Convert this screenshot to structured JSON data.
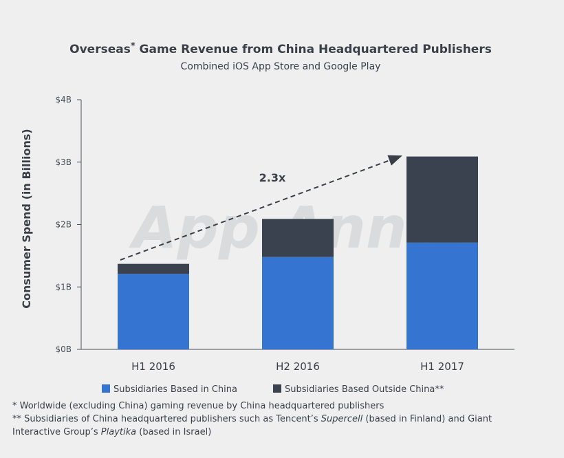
{
  "chart_data": {
    "type": "bar",
    "stacked": true,
    "title": "Overseas",
    "title_star": "*",
    "title_rest": " Game Revenue from China Headquartered Publishers",
    "subtitle": "Combined iOS App Store and Google Play",
    "ylabel": "Consumer Spend (in Billions)",
    "xlabel": "",
    "categories": [
      "H1 2016",
      "H2 2016",
      "H1 2017"
    ],
    "series": [
      {
        "name": "Subsidiaries Based in China",
        "values": [
          1.21,
          1.48,
          1.71
        ],
        "color": "#3574d0"
      },
      {
        "name": "Subsidiaries Based Outside China**",
        "values": [
          0.16,
          0.61,
          1.38
        ],
        "color": "#39424e"
      }
    ],
    "ylim": [
      0,
      4
    ],
    "yticks": [
      0,
      1,
      2,
      3,
      4
    ],
    "ytick_labels": [
      "$0B",
      "$1B",
      "$2B",
      "$3B",
      "$4B"
    ],
    "annotation": {
      "text": "2.3x",
      "arrow_from": "H1 2016",
      "arrow_to": "H1 2017",
      "style": "dashed-arrow"
    },
    "grid": false,
    "legend": "bottom",
    "watermark": "App Annie"
  },
  "footnotes": {
    "line1": "* Worldwide (excluding China) gaming revenue by China headquartered publishers",
    "line2_a": "** Subsidiaries of China headquartered publishers such as Tencent’s ",
    "line2_em1": "Supercell",
    "line2_b": " (based in Finland) and Giant",
    "line3_a": "Interactive Group’s ",
    "line3_em2": "Playtika",
    "line3_b": " (based in Israel)"
  }
}
